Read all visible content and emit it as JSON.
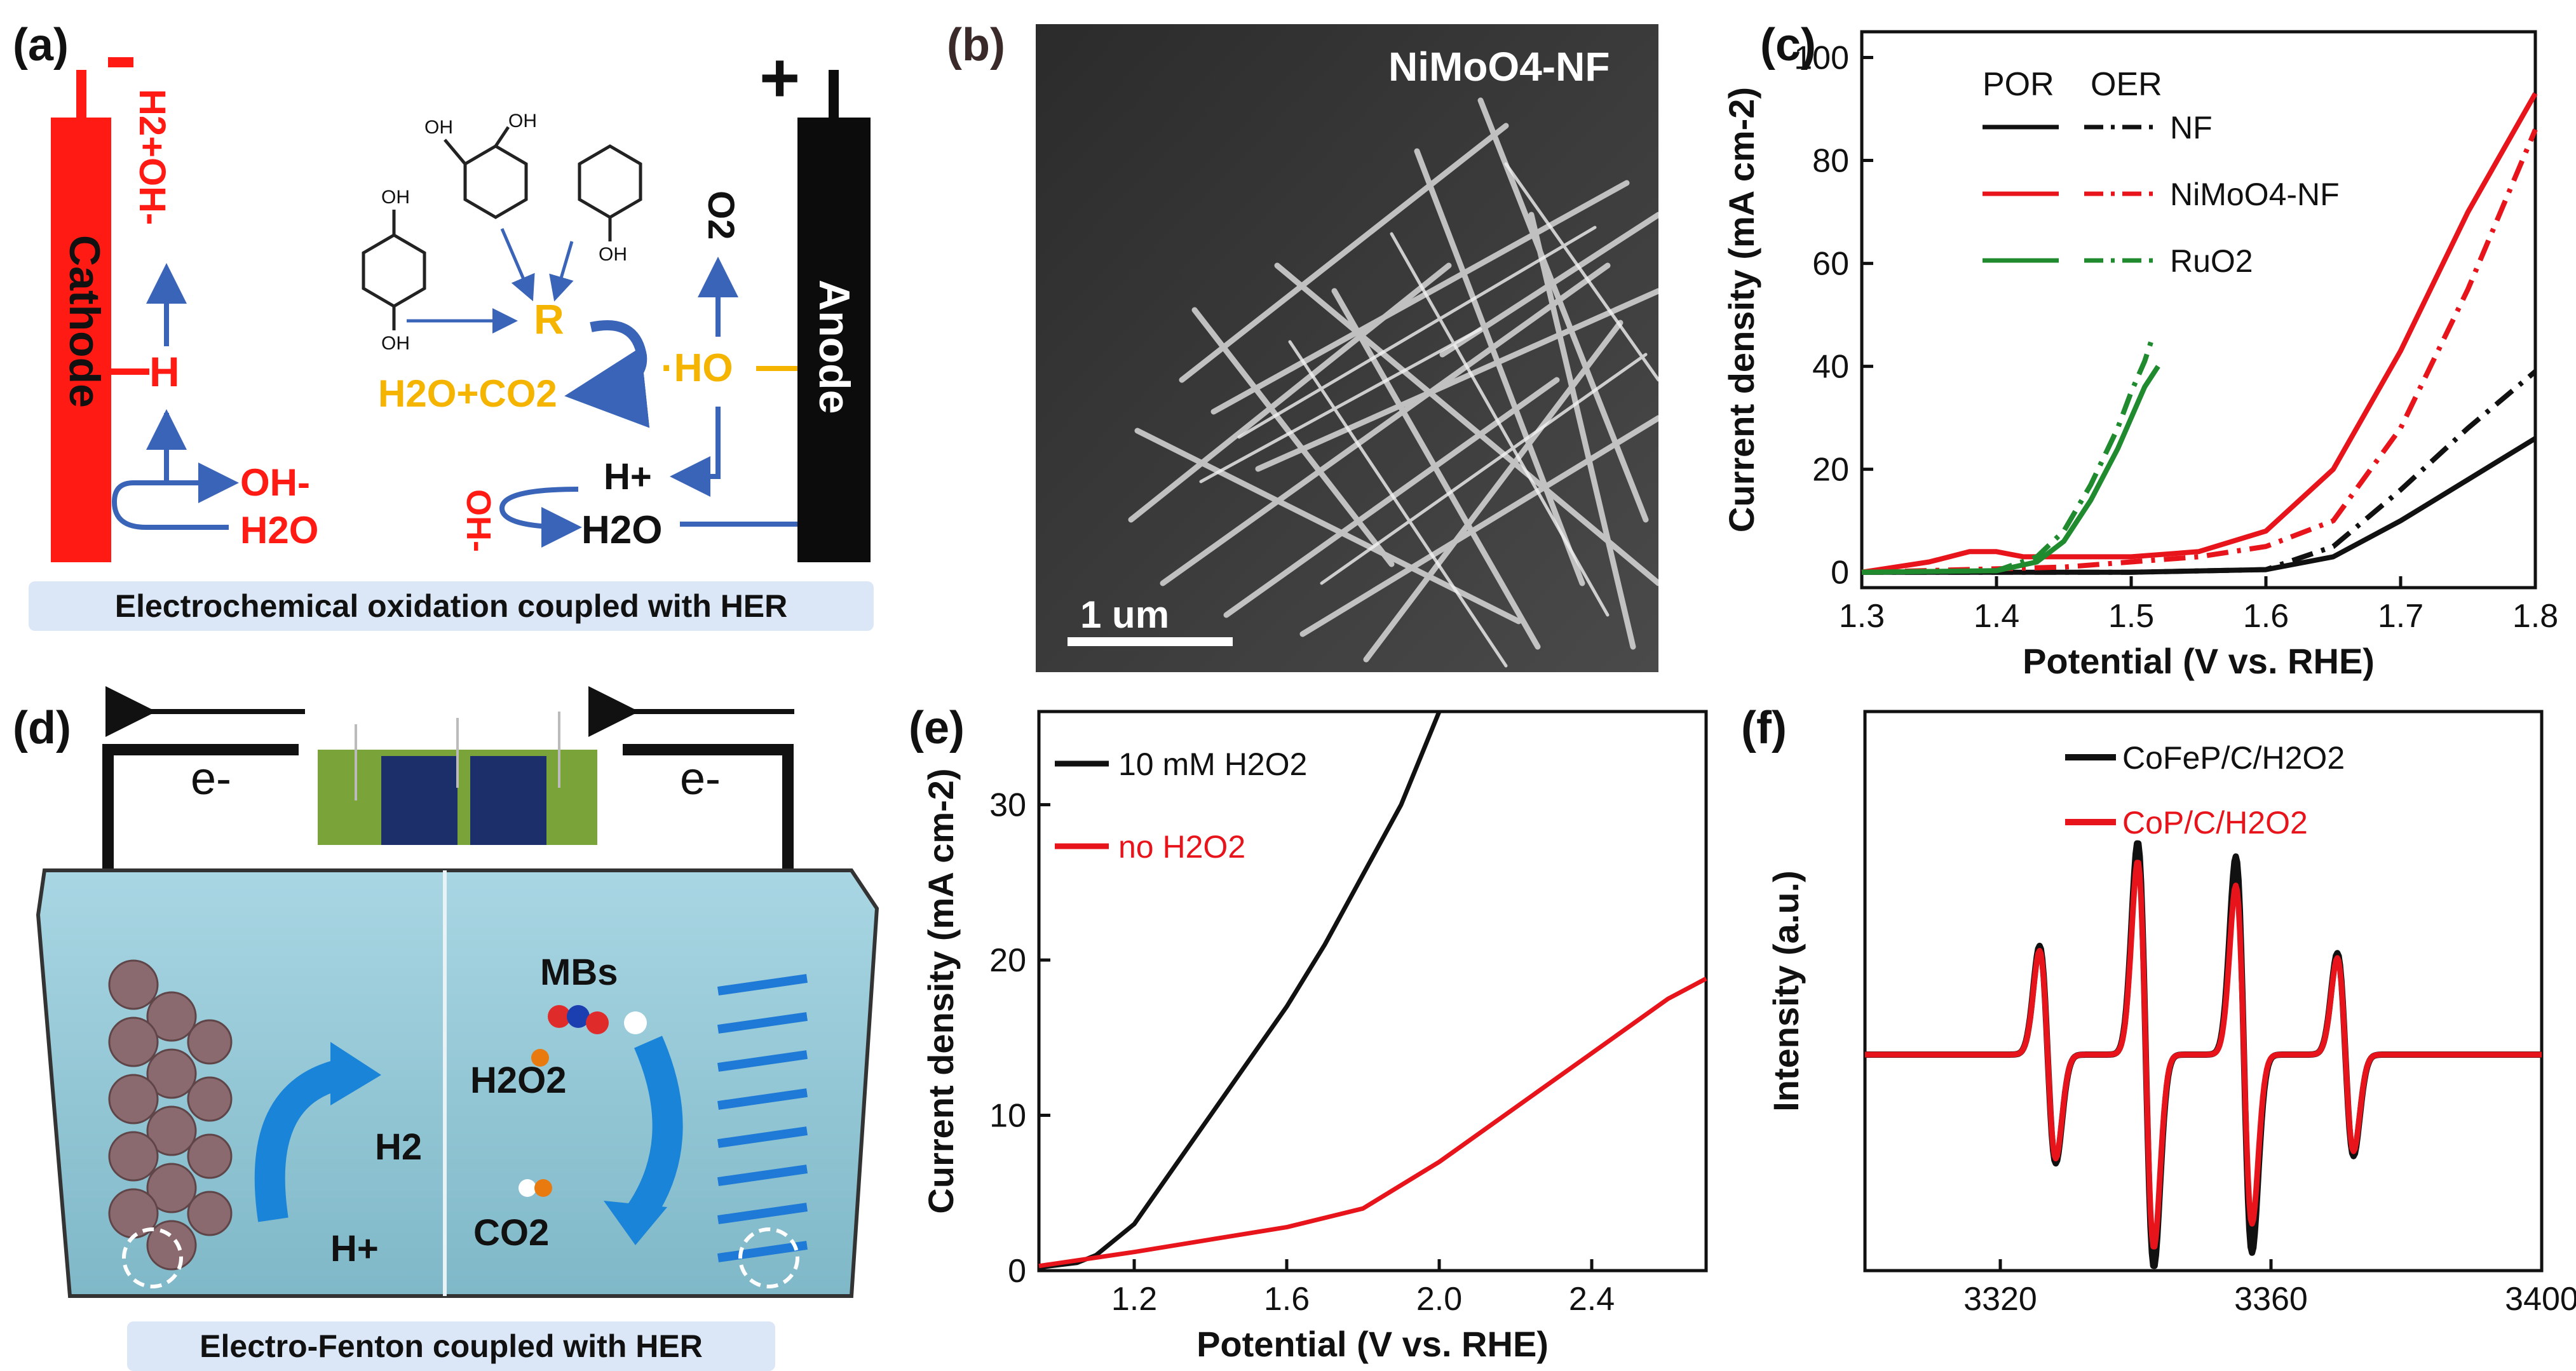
{
  "panels": {
    "a": {
      "label": "(a)",
      "minus": "-",
      "plus": "+",
      "cathode": "Cathode",
      "anode": "Anode",
      "h2_oh": "H2+OH-",
      "h": "H",
      "oh_minus": "OH-",
      "h2o_left": "H2O",
      "r": "R",
      "h2o_co2": "H2O+CO2",
      "ho_radical": "·HO",
      "o2": "O2",
      "h_plus": "H+",
      "oh_minus_right": "OH-",
      "h2o_right": "H2O",
      "mol_oh": "OH",
      "caption": "Electrochemical oxidation coupled with HER"
    },
    "b": {
      "label": "(b)",
      "title": "NiMoO4-NF",
      "scalebar": "1 um"
    },
    "d": {
      "label": "(d)",
      "e_left": "e-",
      "e_right": "e-",
      "mbs": "MBs",
      "h2o2": "H2O2",
      "h2": "H2",
      "hplus": "H+",
      "co2": "CO2",
      "caption": "Electro-Fenton coupled  with HER"
    }
  },
  "chart_data": [
    {
      "panel": "(c)",
      "type": "line",
      "title": "",
      "xlabel": "Potential (V vs. RHE)",
      "ylabel": "Current density (mA cm-2)",
      "xlim": [
        1.3,
        1.8
      ],
      "ylim": [
        -3,
        105
      ],
      "xticks": [
        "1.3",
        "1.4",
        "1.5",
        "1.6",
        "1.7",
        "1.8"
      ],
      "yticks": [
        "0",
        "20",
        "40",
        "60",
        "80",
        "100"
      ],
      "legend_headers": [
        "POR",
        "OER"
      ],
      "legend": [
        "NF",
        "NiMoO4-NF",
        "RuO2"
      ],
      "series": [
        {
          "name": "NF POR",
          "color": "#111111",
          "dash": "solid",
          "x": [
            1.3,
            1.4,
            1.5,
            1.6,
            1.65,
            1.7,
            1.75,
            1.8
          ],
          "y": [
            0,
            0,
            0,
            0.5,
            3,
            10,
            18,
            26
          ]
        },
        {
          "name": "NF OER",
          "color": "#111111",
          "dash": "dashdot",
          "x": [
            1.3,
            1.5,
            1.6,
            1.65,
            1.7,
            1.75,
            1.8
          ],
          "y": [
            0,
            0,
            0.5,
            5,
            16,
            28,
            39
          ]
        },
        {
          "name": "NiMoO4-NF POR",
          "color": "#e8141b",
          "dash": "solid",
          "x": [
            1.3,
            1.35,
            1.38,
            1.4,
            1.42,
            1.45,
            1.5,
            1.55,
            1.6,
            1.65,
            1.7,
            1.75,
            1.8
          ],
          "y": [
            0,
            2,
            4,
            4,
            3,
            3,
            3,
            4,
            8,
            20,
            43,
            70,
            93
          ]
        },
        {
          "name": "NiMoO4-NF OER",
          "color": "#e8141b",
          "dash": "dashdot",
          "x": [
            1.3,
            1.45,
            1.55,
            1.6,
            1.65,
            1.7,
            1.75,
            1.8
          ],
          "y": [
            0,
            1,
            3,
            5,
            10,
            28,
            55,
            86
          ]
        },
        {
          "name": "RuO2 POR",
          "color": "#1f8a2e",
          "dash": "solid",
          "x": [
            1.3,
            1.4,
            1.43,
            1.45,
            1.47,
            1.49,
            1.5,
            1.51,
            1.52
          ],
          "y": [
            0,
            0.3,
            2,
            6,
            14,
            24,
            30,
            36,
            40
          ]
        },
        {
          "name": "RuO2 OER",
          "color": "#1f8a2e",
          "dash": "dashdot",
          "x": [
            1.3,
            1.4,
            1.43,
            1.45,
            1.47,
            1.49,
            1.5,
            1.51,
            1.515
          ],
          "y": [
            0,
            0.3,
            3,
            8,
            17,
            28,
            35,
            41,
            45
          ]
        }
      ]
    },
    {
      "panel": "(e)",
      "type": "line",
      "title": "",
      "xlabel": "Potential (V vs. RHE)",
      "ylabel": "Current density (mA cm-2)",
      "xlim": [
        0.95,
        2.7
      ],
      "ylim": [
        0,
        36
      ],
      "xticks": [
        "1.2",
        "1.6",
        "2.0",
        "2.4"
      ],
      "yticks": [
        "0",
        "10",
        "20",
        "30"
      ],
      "legend": [
        "10 mM H2O2",
        "no H2O2"
      ],
      "series": [
        {
          "name": "10 mM H2O2",
          "color": "#111111",
          "x": [
            0.95,
            1.05,
            1.1,
            1.2,
            1.3,
            1.4,
            1.5,
            1.6,
            1.7,
            1.8,
            1.9,
            2.0
          ],
          "y": [
            0.2,
            0.5,
            1,
            3,
            6.5,
            10,
            13.5,
            17,
            21,
            25.5,
            30,
            36
          ]
        },
        {
          "name": "no H2O2",
          "color": "#e8141b",
          "x": [
            0.95,
            1.2,
            1.4,
            1.6,
            1.8,
            2.0,
            2.2,
            2.4,
            2.6,
            2.7
          ],
          "y": [
            0.3,
            1.2,
            2,
            2.8,
            4,
            7,
            10.5,
            14,
            17.5,
            18.8
          ]
        }
      ]
    },
    {
      "panel": "(f)",
      "type": "line",
      "title": "",
      "xlabel": "",
      "ylabel": "Intensity (a.u.)",
      "xlim": [
        3300,
        3400
      ],
      "xticks": [
        "3320",
        "3360",
        "3400"
      ],
      "legend": [
        "CoFeP/C/H2O2",
        "CoP/C/H2O2"
      ],
      "peaks": [
        3327,
        3341.5,
        3356,
        3371
      ],
      "amplitudes_cofep": [
        0.45,
        0.88,
        0.82,
        0.42
      ],
      "amplitudes_cop": [
        0.43,
        0.8,
        0.7,
        0.4
      ],
      "series": [
        {
          "name": "CoFeP/C/H2O2",
          "color": "#111111"
        },
        {
          "name": "CoP/C/H2O2",
          "color": "#e8141b"
        }
      ]
    }
  ]
}
